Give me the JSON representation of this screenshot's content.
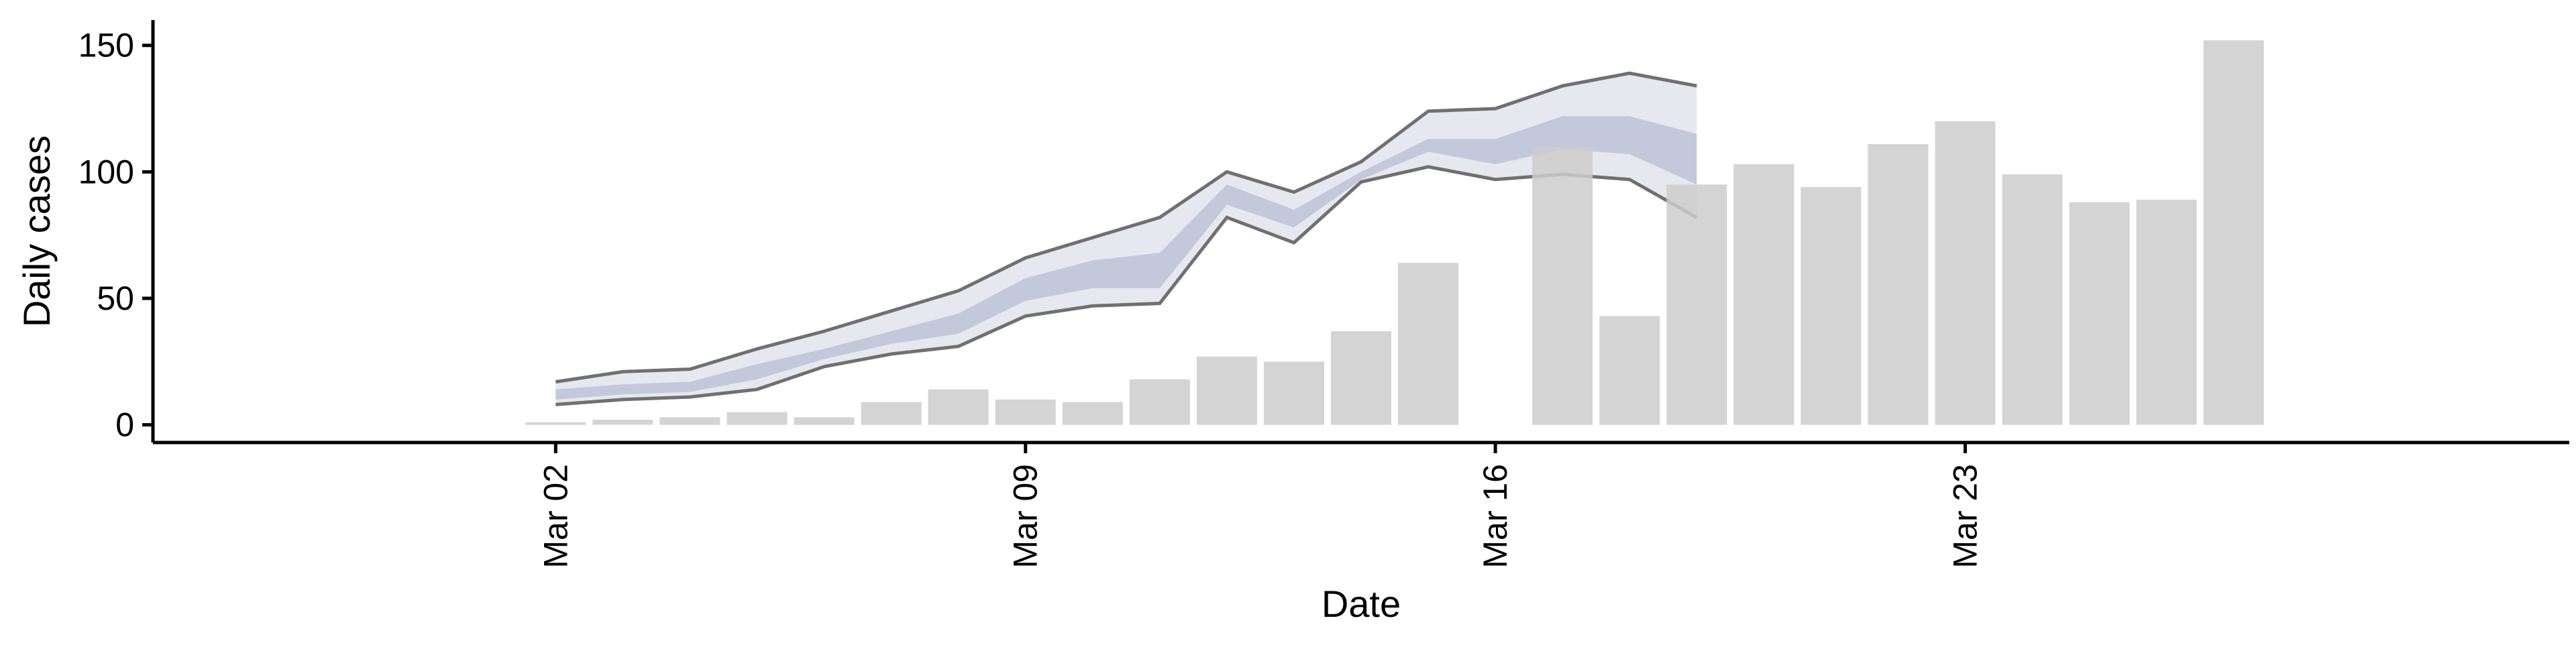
{
  "chart_data": {
    "type": "bar",
    "title": "",
    "xlabel": "Date",
    "ylabel": "Daily cases",
    "ylim": [
      -7,
      160
    ],
    "yticks": [
      0,
      50,
      100,
      150
    ],
    "xlim": [
      "2020-02-25",
      "2020-04-01"
    ],
    "xticks": [
      {
        "date": "2020-03-02",
        "label": "Mar 02"
      },
      {
        "date": "2020-03-09",
        "label": "Mar 09"
      },
      {
        "date": "2020-03-16",
        "label": "Mar 16"
      },
      {
        "date": "2020-03-23",
        "label": "Mar 23"
      }
    ],
    "grid": false,
    "legend": "none",
    "colors": {
      "bars": "#cccccc",
      "outer_band": "#e6e8ef",
      "inner_band": "#c3c8db",
      "band_lines": "#707070",
      "axis": "#000000"
    },
    "bars": {
      "x": [
        "2020-03-02",
        "2020-03-03",
        "2020-03-04",
        "2020-03-05",
        "2020-03-06",
        "2020-03-07",
        "2020-03-08",
        "2020-03-09",
        "2020-03-10",
        "2020-03-11",
        "2020-03-12",
        "2020-03-13",
        "2020-03-14",
        "2020-03-15",
        "2020-03-17",
        "2020-03-18",
        "2020-03-19",
        "2020-03-20",
        "2020-03-21",
        "2020-03-22",
        "2020-03-23",
        "2020-03-24",
        "2020-03-25",
        "2020-03-26",
        "2020-03-27"
      ],
      "values": [
        1,
        2,
        3,
        5,
        3,
        9,
        14,
        10,
        9,
        18,
        27,
        25,
        37,
        64,
        110,
        43,
        95,
        103,
        94,
        111,
        120,
        99,
        88,
        89,
        152
      ]
    },
    "forecast_band": {
      "x": [
        "2020-03-02",
        "2020-03-03",
        "2020-03-04",
        "2020-03-05",
        "2020-03-06",
        "2020-03-07",
        "2020-03-08",
        "2020-03-09",
        "2020-03-10",
        "2020-03-11",
        "2020-03-12",
        "2020-03-13",
        "2020-03-14",
        "2020-03-15",
        "2020-03-16",
        "2020-03-17",
        "2020-03-18",
        "2020-03-19"
      ],
      "outer_upper": [
        17,
        21,
        22,
        30,
        37,
        45,
        53,
        66,
        74,
        82,
        100,
        92,
        104,
        124,
        125,
        134,
        139,
        134
      ],
      "outer_lower": [
        8,
        10,
        11,
        14,
        23,
        28,
        31,
        43,
        47,
        48,
        82,
        72,
        96,
        102,
        97,
        99,
        97,
        82
      ],
      "inner_upper": [
        14,
        16,
        17,
        24,
        30,
        37,
        44,
        58,
        65,
        68,
        95,
        85,
        100,
        113,
        113,
        122,
        122,
        115
      ],
      "inner_lower": [
        10,
        12,
        13,
        18,
        26,
        32,
        36,
        49,
        54,
        54,
        87,
        78,
        97,
        108,
        103,
        109,
        107,
        95
      ]
    }
  }
}
